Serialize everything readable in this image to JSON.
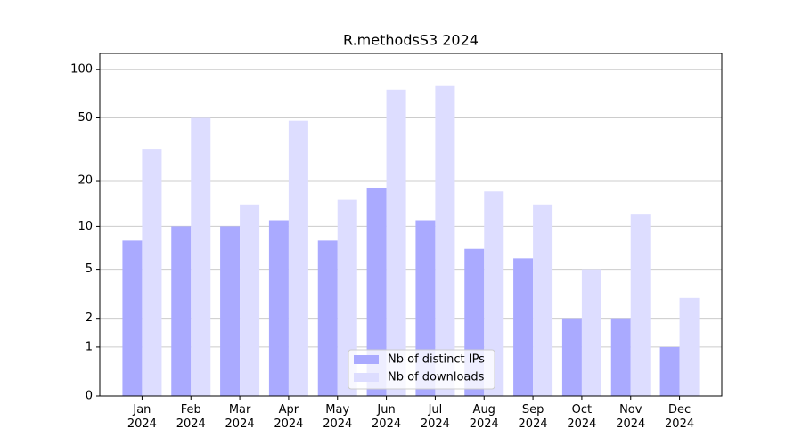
{
  "chart_data": {
    "type": "bar",
    "title": "R.methodsS3 2024",
    "categories": [
      "Jan\n2024",
      "Feb\n2024",
      "Mar\n2024",
      "Apr\n2024",
      "May\n2024",
      "Jun\n2024",
      "Jul\n2024",
      "Aug\n2024",
      "Sep\n2024",
      "Oct\n2024",
      "Nov\n2024",
      "Dec\n2024"
    ],
    "series": [
      {
        "name": "Nb of distinct IPs",
        "color": "#aaaaff",
        "values": [
          8,
          10,
          10,
          11,
          8,
          18,
          11,
          7,
          6,
          2,
          2,
          1
        ]
      },
      {
        "name": "Nb of downloads",
        "color": "#ddddff",
        "values": [
          32,
          50,
          14,
          48,
          15,
          75,
          79,
          17,
          14,
          5,
          12,
          3
        ]
      }
    ],
    "yscale": "log1p",
    "ylim": [
      0,
      126
    ],
    "yticks": [
      0,
      1,
      2,
      5,
      10,
      20,
      50,
      100
    ],
    "grid": true,
    "legend": "lower center"
  }
}
